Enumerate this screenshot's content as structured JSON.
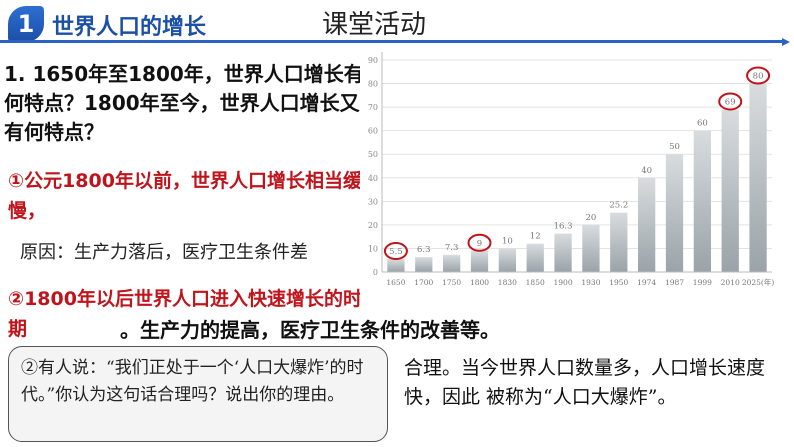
{
  "header": {
    "badge_number": "1",
    "section_title": "世界人口的增长",
    "activity_title": "课堂活动",
    "accent_color": "#1b4fa8"
  },
  "question": "1. 1650年至1800年，世界人口增长有何特点？1800年至今，世界人口增长又有何特点？",
  "answers": {
    "answer1": "①公元1800年以前，世界人口增长相当缓慢，",
    "reason1": "原因：生产力落后，医疗卫生条件差",
    "answer2": "②1800年以后世界人口进入快速增长的时期",
    "reason2": "。生产力的提高，医疗卫生条件的改善等。",
    "answer_color": "#c0141c"
  },
  "quote": {
    "text": "②有人说：“我们正处于一个‘人口大爆炸’的时代。”你认为这句话合理吗？说出你的理由。"
  },
  "bottom_answer": "合理。当今世界人口数量多，人口增长速度快，因此 被称为“人口大爆炸”。",
  "chart_data": {
    "type": "bar",
    "categories": [
      "1650",
      "1700",
      "1750",
      "1800",
      "1830",
      "1850",
      "1900",
      "1930",
      "1950",
      "1974",
      "1987",
      "1999",
      "2010",
      "2025(年)"
    ],
    "values": [
      5.5,
      6.3,
      7.3,
      9,
      10,
      12,
      16.3,
      20,
      25.2,
      40,
      50,
      60,
      69,
      80
    ],
    "value_labels": [
      "5.5",
      "6.3",
      "7.3",
      "9",
      "10",
      "12",
      "16.3",
      "20",
      "25.2",
      "40",
      "50",
      "60",
      "69",
      "80"
    ],
    "yticks": [
      "0",
      "10",
      "20",
      "30",
      "40",
      "50",
      "60",
      "70",
      "80",
      "90"
    ],
    "ylim": [
      0,
      90
    ],
    "title": "",
    "xlabel": "",
    "ylabel": "",
    "grid": true,
    "circled_categories": [
      "1650",
      "1800",
      "2010",
      "2025(年)"
    ],
    "circle_color": "#c0141c",
    "bar_color_top": "#d8dcdf",
    "bar_color_bottom": "#9aa3a8"
  }
}
